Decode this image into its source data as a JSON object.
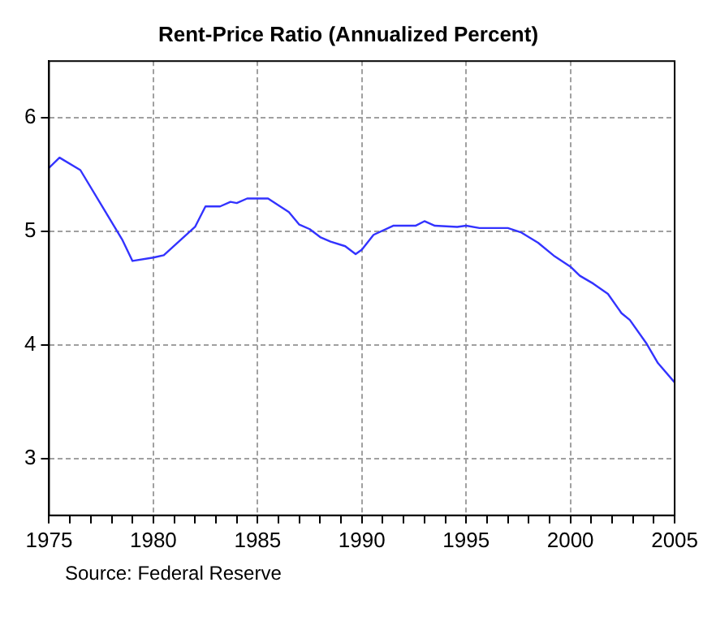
{
  "chart_data": {
    "type": "line",
    "title": "Rent-Price Ratio (Annualized Percent)",
    "annotations": [
      "Source: Federal Reserve"
    ],
    "x": [
      1975,
      1975.5,
      1976.5,
      1978.5,
      1979,
      1980,
      1980.5,
      1982,
      1982.5,
      1983.2,
      1983.7,
      1984,
      1984.5,
      1985.5,
      1986.5,
      1987,
      1987.5,
      1988,
      1988.5,
      1989.2,
      1989.7,
      1990,
      1990.56,
      1991.5,
      1992.57,
      1993,
      1993.5,
      1994.57,
      1995,
      1995.64,
      1997,
      1997.65,
      1998.45,
      1999.25,
      2000,
      2000.45,
      2001.1,
      2001.8,
      2002.45,
      2002.85,
      2003.66,
      2004.2,
      2005
    ],
    "series": [
      {
        "color": "#3333ff",
        "values": [
          5.56,
          5.65,
          5.54,
          4.93,
          4.74,
          4.77,
          4.79,
          5.04,
          5.22,
          5.22,
          5.26,
          5.25,
          5.29,
          5.29,
          5.17,
          5.06,
          5.02,
          4.95,
          4.91,
          4.87,
          4.8,
          4.84,
          4.97,
          5.05,
          5.05,
          5.09,
          5.05,
          5.04,
          5.05,
          5.03,
          5.03,
          4.99,
          4.9,
          4.78,
          4.69,
          4.61,
          4.54,
          4.45,
          4.28,
          4.22,
          4.01,
          3.84,
          3.67
        ]
      }
    ],
    "xlim": [
      1975,
      2005
    ],
    "xticks": [
      1975,
      {
        "value": 1976,
        "label": null
      },
      {
        "value": 1977,
        "label": null
      },
      {
        "value": 1978,
        "label": null
      },
      {
        "value": 1979,
        "label": null
      },
      1980,
      {
        "value": 1981,
        "label": null
      },
      {
        "value": 1982,
        "label": null
      },
      {
        "value": 1983,
        "label": null
      },
      {
        "value": 1984,
        "label": null
      },
      1985,
      {
        "value": 1986,
        "label": null
      },
      {
        "value": 1987,
        "label": null
      },
      {
        "value": 1988,
        "label": null
      },
      {
        "value": 1989,
        "label": null
      },
      1990,
      {
        "value": 1991,
        "label": null
      },
      {
        "value": 1992,
        "label": null
      },
      {
        "value": 1993,
        "label": null
      },
      {
        "value": 1994,
        "label": null
      },
      1995,
      {
        "value": 1996,
        "label": null
      },
      {
        "value": 1997,
        "label": null
      },
      {
        "value": 1998,
        "label": null
      },
      {
        "value": 1999,
        "label": null
      },
      2000,
      {
        "value": 2001,
        "label": null
      },
      {
        "value": 2002,
        "label": null
      },
      {
        "value": 2003,
        "label": null
      },
      {
        "value": 2004,
        "label": null
      },
      2005
    ],
    "ylim": [
      2.5,
      6.5
    ],
    "yticks": [
      3,
      4,
      5,
      6
    ],
    "grid": true,
    "legend": false,
    "marker": "none",
    "line_style": "solid"
  }
}
